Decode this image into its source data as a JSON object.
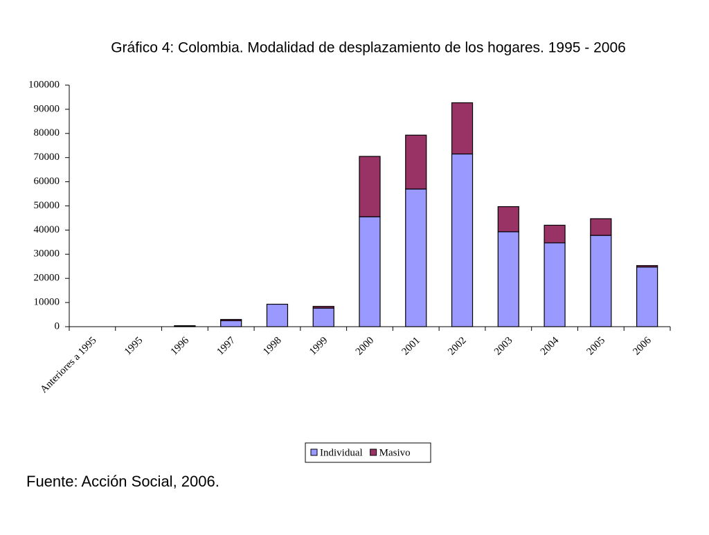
{
  "chart_data": {
    "type": "stacked_bar",
    "title": "Gráfico 4: Colombia. Modalidad de desplazamiento de los hogares. 1995 - 2006",
    "categories": [
      "Anteriores a 1995",
      "1995",
      "1996",
      "1997",
      "1998",
      "1999",
      "2000",
      "2001",
      "2002",
      "2003",
      "2004",
      "2005",
      "2006"
    ],
    "series": [
      {
        "name": "Individual",
        "color": "#9999ff",
        "values": [
          0,
          0,
          300,
          2500,
          9300,
          7700,
          45500,
          57000,
          71500,
          39300,
          34700,
          37800,
          24700
        ]
      },
      {
        "name": "Masivo",
        "color": "#993366",
        "values": [
          0,
          0,
          100,
          500,
          0,
          700,
          25000,
          22300,
          21200,
          10400,
          7300,
          6900,
          600
        ]
      }
    ],
    "ylim": [
      0,
      100000
    ],
    "yticks": [
      0,
      10000,
      20000,
      30000,
      40000,
      50000,
      60000,
      70000,
      80000,
      90000,
      100000
    ],
    "legend": "bottom",
    "source": "Fuente: Acción Social, 2006."
  }
}
